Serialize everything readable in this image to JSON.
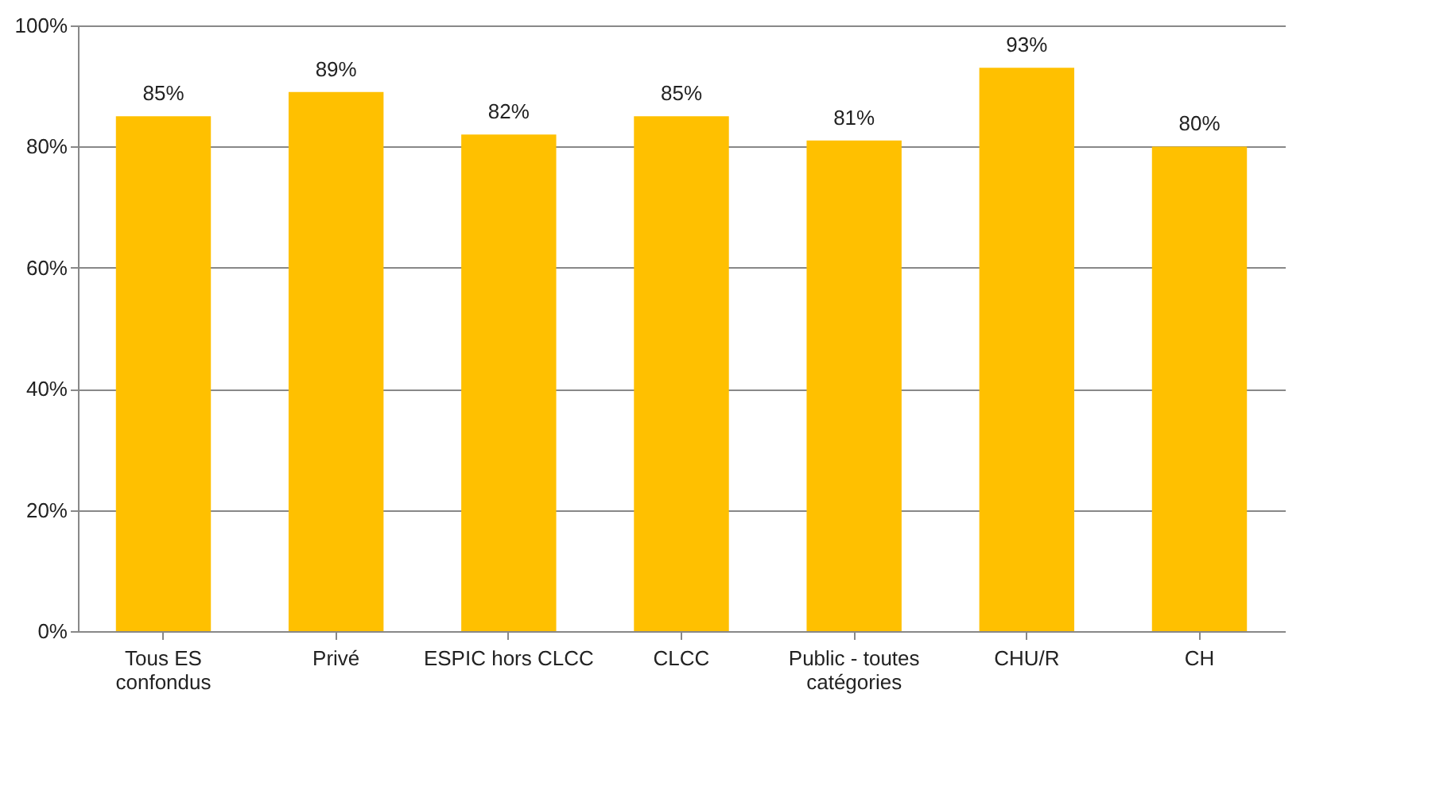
{
  "chart_data": {
    "type": "bar",
    "categories": [
      "Tous ES confondus",
      "Privé",
      "ESPIC hors CLCC",
      "CLCC",
      "Public - toutes catégories",
      "CHU/R",
      "CH"
    ],
    "values": [
      85,
      89,
      82,
      85,
      81,
      93,
      80
    ],
    "value_labels": [
      "85%",
      "89%",
      "82%",
      "85%",
      "81%",
      "93%",
      "80%"
    ],
    "color": "#ffc000",
    "ylim": [
      0,
      100
    ],
    "yticks": [
      {
        "value": 0,
        "label": "0%"
      },
      {
        "value": 20,
        "label": "20%"
      },
      {
        "value": 40,
        "label": "40%"
      },
      {
        "value": 60,
        "label": "60%"
      },
      {
        "value": 80,
        "label": "80%"
      },
      {
        "value": 100,
        "label": "100%"
      }
    ],
    "grid": "y"
  }
}
